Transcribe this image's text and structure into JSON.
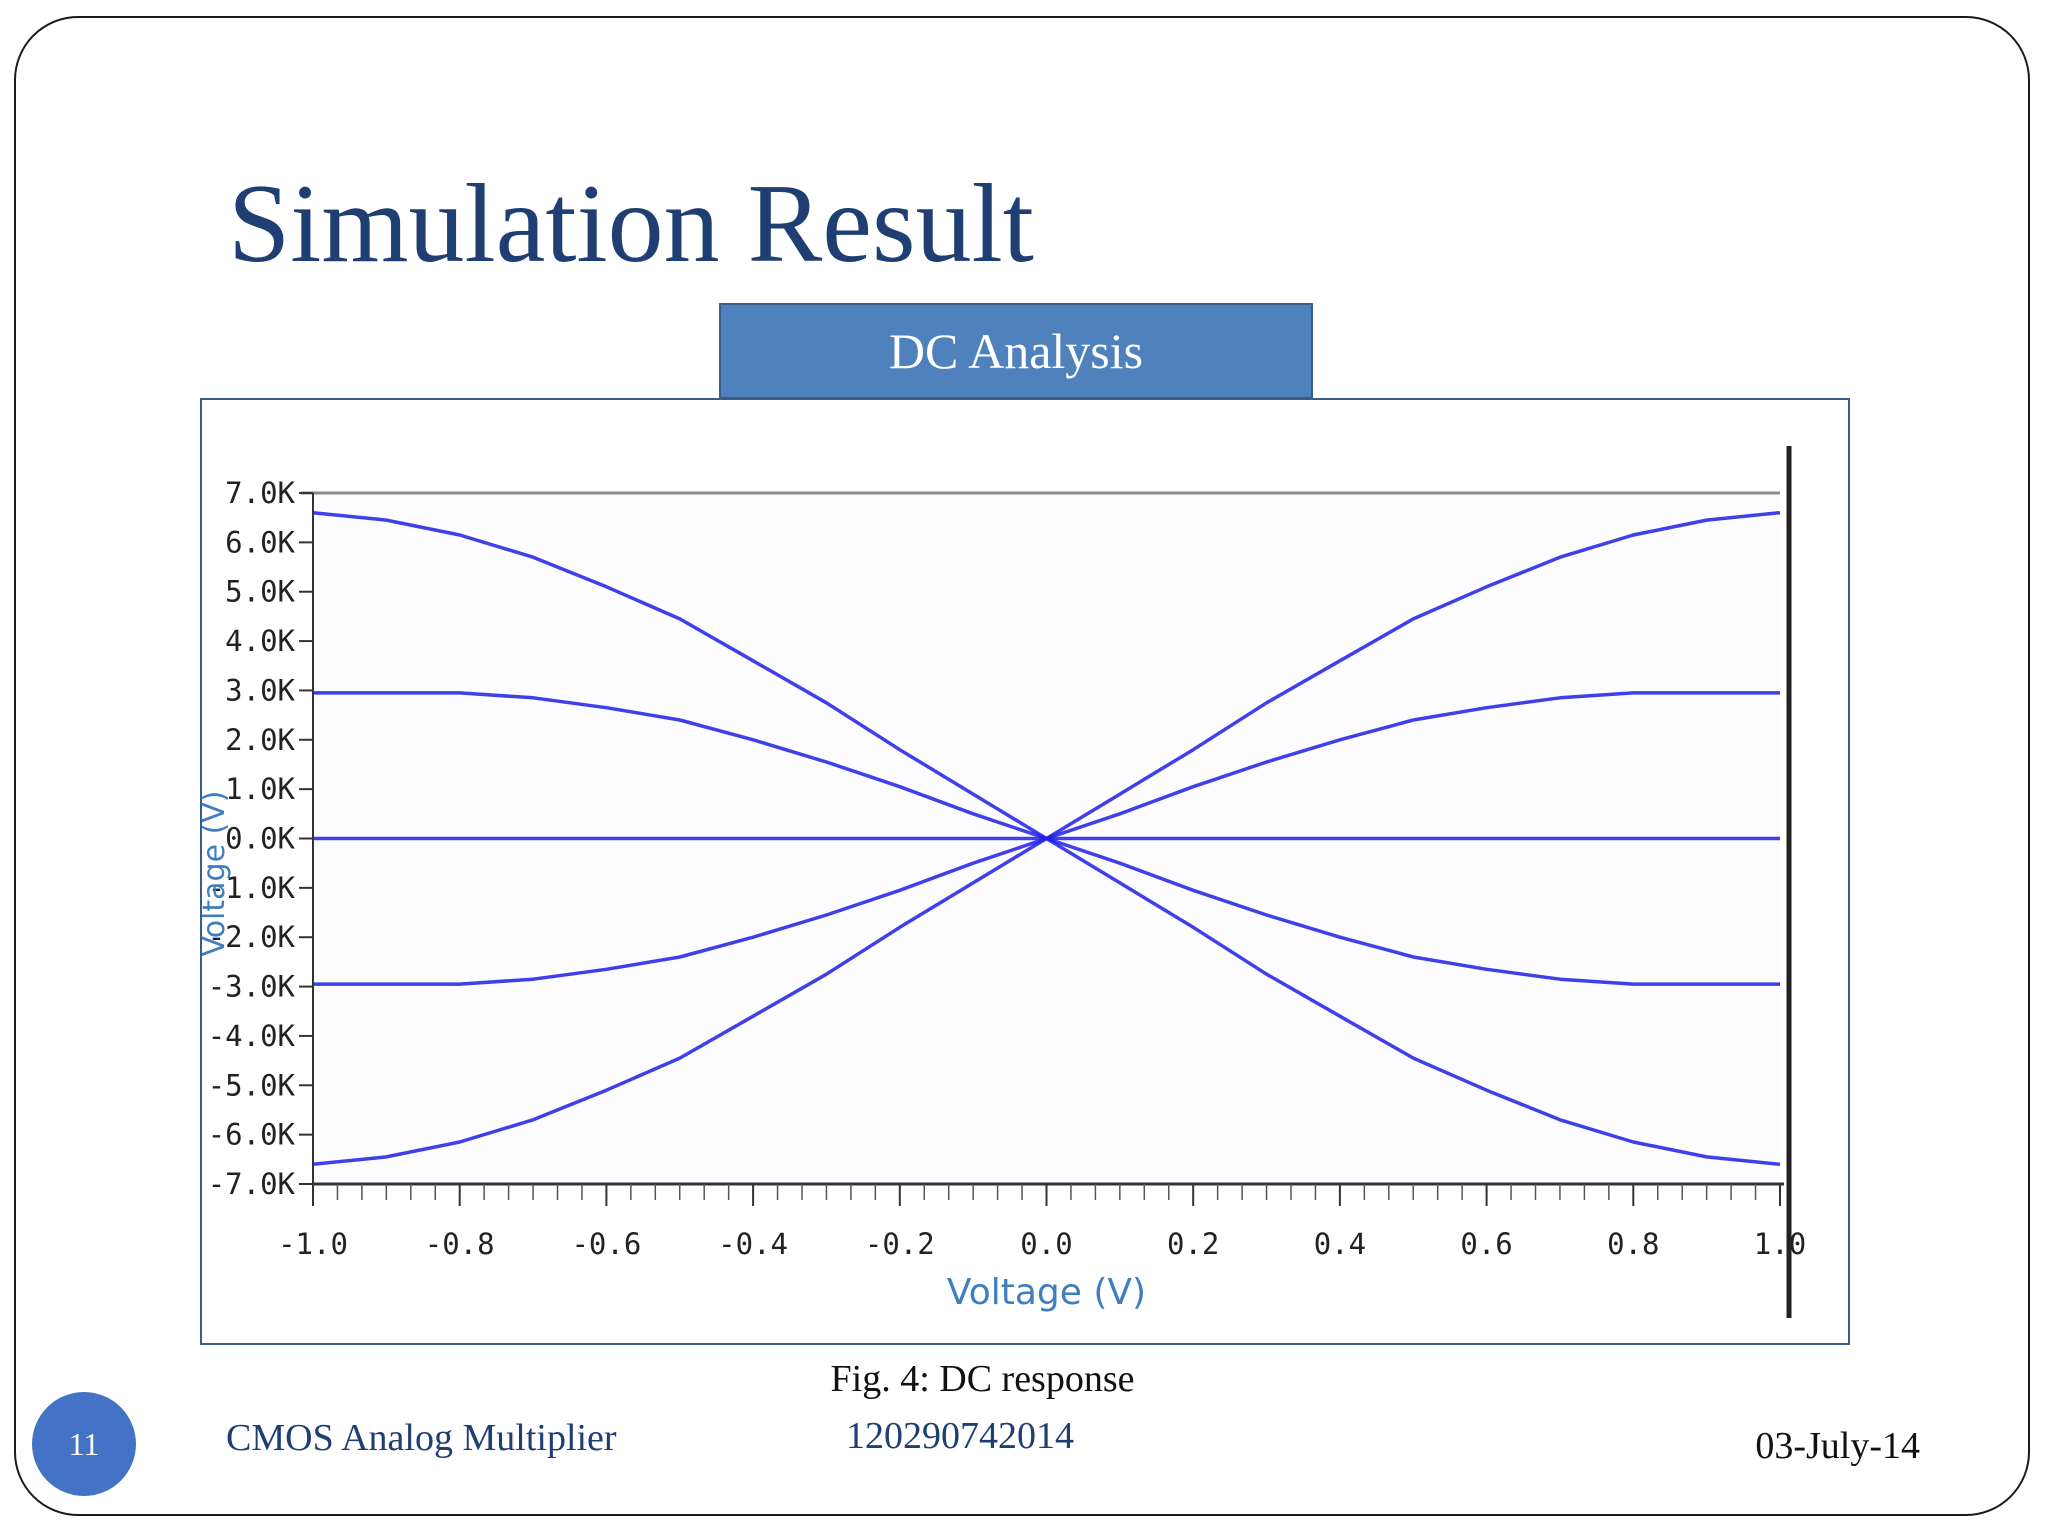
{
  "slide": {
    "title": "Simulation Result",
    "tab_label": "DC Analysis",
    "caption": "Fig. 4: DC response",
    "page_number": "11",
    "footer_title": "CMOS Analog Multiplier",
    "footer_id": "120290742014",
    "footer_date": "03-July-14"
  },
  "colors": {
    "title": "#1f3f73",
    "tab_fill": "#4f81bd",
    "series": "#1f1fe6",
    "axis_label": "#3f7fbf",
    "page_badge": "#4472c4"
  },
  "chart_data": {
    "type": "line",
    "xlabel": "Voltage (V)",
    "ylabel": "Voltage (V)",
    "xlim": [
      -1.0,
      1.0
    ],
    "ylim": [
      -7000,
      7000
    ],
    "x_ticks": [
      "-1.0",
      "-0.8",
      "-0.6",
      "-0.4",
      "-0.2",
      "0.0",
      "0.2",
      "0.4",
      "0.6",
      "0.8",
      "1.0"
    ],
    "y_ticks": [
      "7.0K",
      "6.0K",
      "5.0K",
      "4.0K",
      "3.0K",
      "2.0K",
      "1.0K",
      "0.0K",
      "-1.0K",
      "-2.0K",
      "-3.0K",
      "-4.0K",
      "-5.0K",
      "-6.0K",
      "-7.0K"
    ],
    "grid": false,
    "legend": "none",
    "x": [
      -1.0,
      -0.9,
      -0.8,
      -0.7,
      -0.6,
      -0.5,
      -0.4,
      -0.3,
      -0.2,
      -0.1,
      0.0,
      0.1,
      0.2,
      0.3,
      0.4,
      0.5,
      0.6,
      0.7,
      0.8,
      0.9,
      1.0
    ],
    "series": [
      {
        "values": [
          6600,
          6450,
          6150,
          5700,
          5100,
          4450,
          3600,
          2750,
          1800,
          900,
          0,
          -900,
          -1800,
          -2750,
          -3600,
          -4450,
          -5100,
          -5700,
          -6150,
          -6450,
          -6600
        ]
      },
      {
        "values": [
          2950,
          2950,
          2950,
          2850,
          2650,
          2400,
          2000,
          1550,
          1050,
          500,
          0,
          -500,
          -1050,
          -1550,
          -2000,
          -2400,
          -2650,
          -2850,
          -2950,
          -2950,
          -2950
        ]
      },
      {
        "values": [
          0,
          0,
          0,
          0,
          0,
          0,
          0,
          0,
          0,
          0,
          0,
          0,
          0,
          0,
          0,
          0,
          0,
          0,
          0,
          0,
          0
        ]
      },
      {
        "values": [
          -2950,
          -2950,
          -2950,
          -2850,
          -2650,
          -2400,
          -2000,
          -1550,
          -1050,
          -500,
          0,
          500,
          1050,
          1550,
          2000,
          2400,
          2650,
          2850,
          2950,
          2950,
          2950
        ]
      },
      {
        "values": [
          -6600,
          -6450,
          -6150,
          -5700,
          -5100,
          -4450,
          -3600,
          -2750,
          -1800,
          -900,
          0,
          900,
          1800,
          2750,
          3600,
          4450,
          5100,
          5700,
          6150,
          6450,
          6600
        ]
      }
    ]
  }
}
